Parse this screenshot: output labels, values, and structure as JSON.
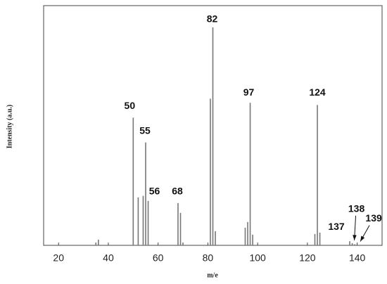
{
  "chart_data": {
    "type": "spectrum",
    "x_label": "m/e",
    "y_label": "Intensity (a.u.)",
    "x": [
      35,
      36,
      50,
      52,
      54,
      55,
      56,
      68,
      69,
      70,
      81,
      82,
      83,
      95,
      96,
      97,
      98,
      123,
      124,
      125,
      137,
      138,
      139
    ],
    "values": [
      1.3,
      2.6,
      58.6,
      22,
      22.7,
      47.2,
      20.4,
      19.4,
      14.9,
      1.3,
      67.3,
      100,
      6.5,
      8.1,
      10.7,
      65.4,
      4.9,
      5.2,
      64.4,
      5.8,
      1.9,
      1,
      0.5
    ],
    "color": "#777777",
    "xlim": [
      14,
      150
    ],
    "ylim": [
      0,
      110
    ],
    "xticks": [
      20,
      40,
      60,
      80,
      100,
      120,
      140
    ],
    "peak_labels": [
      "50",
      "55",
      "56",
      "68",
      "82",
      "97",
      "124",
      "137",
      "138",
      "139"
    ]
  }
}
